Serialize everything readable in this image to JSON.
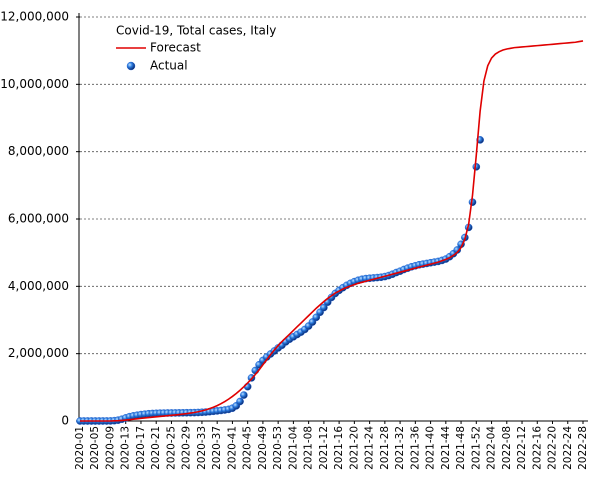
{
  "chart_data": {
    "type": "line",
    "title": "Covid-19, Total cases, Italy",
    "legend": "upper left",
    "grid": true,
    "categories": [
      "2020-01",
      null,
      null,
      null,
      "2020-05",
      null,
      null,
      null,
      "2020-09",
      null,
      null,
      null,
      "2020-13",
      null,
      null,
      null,
      "2020-17",
      null,
      null,
      null,
      "2020-21",
      null,
      null,
      null,
      "2020-25",
      null,
      null,
      null,
      "2020-29",
      null,
      null,
      null,
      "2020-33",
      null,
      null,
      null,
      "2020-37",
      null,
      null,
      null,
      "2020-41",
      null,
      null,
      null,
      "2020-45",
      null,
      null,
      null,
      "2020-49",
      null,
      null,
      null,
      "2020-53",
      null,
      null,
      null,
      "2021-04",
      null,
      null,
      null,
      "2021-08",
      null,
      null,
      null,
      "2021-12",
      null,
      null,
      null,
      "2021-16",
      null,
      null,
      null,
      "2021-20",
      null,
      null,
      null,
      "2021-24",
      null,
      null,
      null,
      "2021-28",
      null,
      null,
      null,
      "2021-32",
      null,
      null,
      null,
      "2021-36",
      null,
      null,
      null,
      "2021-40",
      null,
      null,
      null,
      "2021-44",
      null,
      null,
      null,
      "2021-48",
      null,
      null,
      null,
      "2021-52",
      null,
      null,
      null,
      "2022-04",
      null,
      null,
      null,
      "2022-08",
      null,
      null,
      null,
      "2022-12",
      null,
      null,
      null,
      "2022-16",
      null,
      null,
      null,
      "2022-20",
      null,
      null,
      null,
      "2022-24",
      null,
      null,
      null,
      "2022-28"
    ],
    "ylim": [
      0,
      12000000
    ],
    "yticks": [
      0,
      {
        "value": 2000000,
        "label": "2,000,000"
      },
      {
        "value": 4000000,
        "label": "4,000,000"
      },
      {
        "value": 6000000,
        "label": "6,000,000"
      },
      {
        "value": 8000000,
        "label": "8,000,000"
      },
      {
        "value": 10000000,
        "label": "10,000,000"
      },
      {
        "value": 12000000,
        "label": "12,000,000"
      }
    ],
    "series": [
      {
        "name": "Forecast",
        "type": "line",
        "color": "#e00000",
        "values": [
          0,
          0,
          0,
          0,
          0,
          0,
          0,
          0,
          0,
          5000,
          10000,
          18000,
          28000,
          40000,
          52000,
          65000,
          78000,
          90000,
          102000,
          114000,
          125000,
          136000,
          147000,
          158000,
          169000,
          180000,
          192000,
          205000,
          219000,
          235000,
          253000,
          275000,
          300000,
          330000,
          366000,
          408000,
          457000,
          514000,
          578000,
          650000,
          730000,
          818000,
          914000,
          1018000,
          1130000,
          1250000,
          1380000,
          1520000,
          1670000,
          1820000,
          1970000,
          2110000,
          2240000,
          2360000,
          2470000,
          2580000,
          2690000,
          2800000,
          2910000,
          3020000,
          3130000,
          3240000,
          3350000,
          3450000,
          3550000,
          3640000,
          3720000,
          3800000,
          3860000,
          3920000,
          3970000,
          4010000,
          4050000,
          4090000,
          4120000,
          4150000,
          4180000,
          4210000,
          4240000,
          4270000,
          4300000,
          4330000,
          4360000,
          4390000,
          4420000,
          4450000,
          4480000,
          4510000,
          4540000,
          4570000,
          4600000,
          4630000,
          4660000,
          4690000,
          4720000,
          4760000,
          4800000,
          4850000,
          4920000,
          5010000,
          5150000,
          5400000,
          5850000,
          6700000,
          7900000,
          9200000,
          10100000,
          10550000,
          10780000,
          10900000,
          10970000,
          11020000,
          11050000,
          11070000,
          11090000,
          11100000,
          11110000,
          11120000,
          11130000,
          11140000,
          11150000,
          11160000,
          11170000,
          11180000,
          11190000,
          11200000,
          11210000,
          11220000,
          11230000,
          11240000,
          11250000,
          11270000,
          11290000
        ]
      },
      {
        "name": "Actual",
        "type": "scatter",
        "color": "#1e5fd0",
        "values": [
          0,
          0,
          0,
          0,
          0,
          0,
          0,
          900,
          1700,
          10000,
          25000,
          54000,
          92000,
          128000,
          152000,
          172000,
          190000,
          203000,
          215000,
          223000,
          229000,
          233000,
          235000,
          237000,
          238000,
          240000,
          241000,
          243000,
          245000,
          247000,
          249000,
          253000,
          259000,
          266000,
          276000,
          289000,
          300000,
          313000,
          327000,
          345000,
          380000,
          450000,
          580000,
          770000,
          1020000,
          1280000,
          1500000,
          1670000,
          1800000,
          1900000,
          1990000,
          2080000,
          2170000,
          2250000,
          2350000,
          2430000,
          2500000,
          2570000,
          2640000,
          2720000,
          2820000,
          2940000,
          3080000,
          3230000,
          3370000,
          3530000,
          3670000,
          3790000,
          3880000,
          3960000,
          4030000,
          4090000,
          4140000,
          4180000,
          4210000,
          4230000,
          4240000,
          4250000,
          4260000,
          4270000,
          4290000,
          4320000,
          4360000,
          4410000,
          4450000,
          4500000,
          4540000,
          4580000,
          4610000,
          4640000,
          4660000,
          4680000,
          4700000,
          4720000,
          4740000,
          4770000,
          4810000,
          4880000,
          4970000,
          5080000,
          5250000,
          5450000,
          5750000,
          6500000,
          7550000,
          8350000,
          null,
          null,
          null,
          null,
          null,
          null,
          null,
          null,
          null,
          null,
          null,
          null,
          null,
          null,
          null,
          null,
          null,
          null,
          null,
          null,
          null,
          null,
          null,
          null,
          null,
          null,
          null
        ]
      }
    ]
  }
}
